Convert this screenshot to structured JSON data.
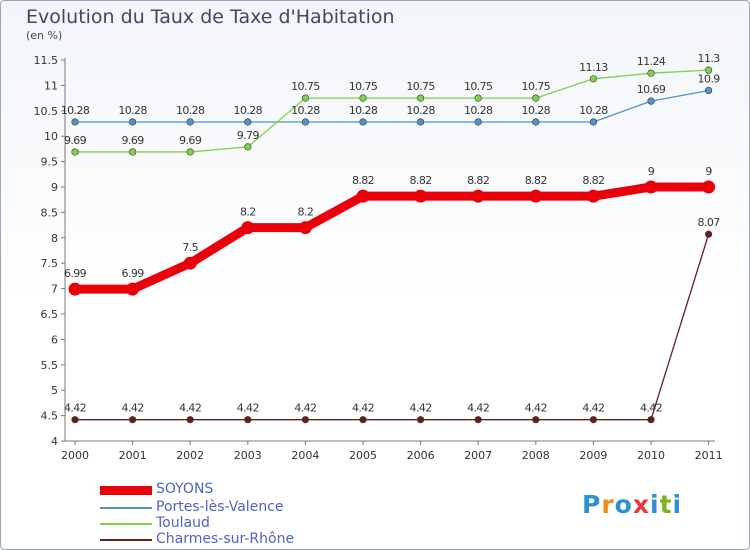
{
  "title": "Evolution du Taux de Taxe d'Habitation",
  "unit": "(en %)",
  "logo": {
    "text": "Proxiti",
    "colors": [
      "#2d8fd5",
      "#f08a1c",
      "#2d8fd5",
      "#e23b3b",
      "#2d8fd5",
      "#7ab51d",
      "#2d8fd5"
    ]
  },
  "chart_data": {
    "type": "line",
    "title": "Evolution du Taux de Taxe d'Habitation",
    "ylabel": "(en %)",
    "x": [
      "2000",
      "2001",
      "2002",
      "2003",
      "2004",
      "2005",
      "2006",
      "2007",
      "2008",
      "2009",
      "2010",
      "2011"
    ],
    "ylim": [
      4,
      11.5
    ],
    "yticks": [
      "4",
      "4.5",
      "5",
      "5.5",
      "6",
      "6.5",
      "7",
      "7.5",
      "8",
      "8.5",
      "9",
      "9.5",
      "10",
      "10.5",
      "11",
      "11.5"
    ],
    "grid": false,
    "legend_position": "bottom-left",
    "series": [
      {
        "name": "SOYONS",
        "color": "#e8000b",
        "emphasis": true,
        "values": [
          6.99,
          6.99,
          7.5,
          8.2,
          8.2,
          8.82,
          8.82,
          8.82,
          8.82,
          8.82,
          9,
          9
        ],
        "labels": [
          "6.99",
          "6.99",
          "7.5",
          "8.2",
          "8.2",
          "8.82",
          "8.82",
          "8.82",
          "8.82",
          "8.82",
          "9",
          "9"
        ]
      },
      {
        "name": "Portes-lès-Valence",
        "color": "#4f92cc",
        "values": [
          10.28,
          10.28,
          10.28,
          10.28,
          10.28,
          10.28,
          10.28,
          10.28,
          10.28,
          10.28,
          10.69,
          10.9
        ],
        "labels": [
          "10.28",
          "10.28",
          "10.28",
          "10.28",
          "10.28",
          "10.28",
          "10.28",
          "10.28",
          "10.28",
          "10.28",
          "10.69",
          "10.9"
        ]
      },
      {
        "name": "Toulaud",
        "color": "#7fd14a",
        "values": [
          9.69,
          9.69,
          9.69,
          9.79,
          10.75,
          10.75,
          10.75,
          10.75,
          10.75,
          11.13,
          11.24,
          11.3
        ],
        "labels": [
          "9.69",
          "9.69",
          "9.69",
          "9.79",
          "10.75",
          "10.75",
          "10.75",
          "10.75",
          "10.75",
          "11.13",
          "11.24",
          "11.3"
        ]
      },
      {
        "name": "Charmes-sur-Rhône",
        "color": "#6a1b1b",
        "values": [
          4.42,
          4.42,
          4.42,
          4.42,
          4.42,
          4.42,
          4.42,
          4.42,
          4.42,
          4.42,
          4.42,
          8.07
        ],
        "labels": [
          "4.42",
          "4.42",
          "4.42",
          "4.42",
          "4.42",
          "4.42",
          "4.42",
          "4.42",
          "4.42",
          "4.42",
          "4.42",
          "8.07"
        ]
      }
    ]
  }
}
